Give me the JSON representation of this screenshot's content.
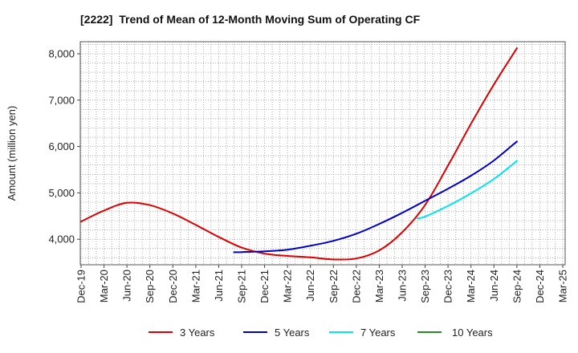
{
  "chart_data": {
    "type": "line",
    "title": "[2222]  Trend of Mean of 12-Month Moving Sum of Operating CF",
    "ylabel": "Amount (million yen)",
    "xlim": [
      2019.917,
      2025.167
    ],
    "ylim": [
      3450,
      8260
    ],
    "grid": true,
    "legend_position": "bottom",
    "x_ticks": [
      {
        "label": "Dec-19",
        "x": 2019.917
      },
      {
        "label": "Mar-20",
        "x": 2020.167
      },
      {
        "label": "Jun-20",
        "x": 2020.417
      },
      {
        "label": "Sep-20",
        "x": 2020.667
      },
      {
        "label": "Dec-20",
        "x": 2020.917
      },
      {
        "label": "Mar-21",
        "x": 2021.167
      },
      {
        "label": "Jun-21",
        "x": 2021.417
      },
      {
        "label": "Sep-21",
        "x": 2021.667
      },
      {
        "label": "Dec-21",
        "x": 2021.917
      },
      {
        "label": "Mar-22",
        "x": 2022.167
      },
      {
        "label": "Jun-22",
        "x": 2022.417
      },
      {
        "label": "Sep-22",
        "x": 2022.667
      },
      {
        "label": "Dec-22",
        "x": 2022.917
      },
      {
        "label": "Mar-23",
        "x": 2023.167
      },
      {
        "label": "Jun-23",
        "x": 2023.417
      },
      {
        "label": "Sep-23",
        "x": 2023.667
      },
      {
        "label": "Dec-23",
        "x": 2023.917
      },
      {
        "label": "Mar-24",
        "x": 2024.167
      },
      {
        "label": "Jun-24",
        "x": 2024.417
      },
      {
        "label": "Sep-24",
        "x": 2024.667
      },
      {
        "label": "Dec-24",
        "x": 2024.917
      },
      {
        "label": "Mar-25",
        "x": 2025.167
      }
    ],
    "y_ticks": [
      {
        "label": "4,000",
        "y": 4000
      },
      {
        "label": "5,000",
        "y": 5000
      },
      {
        "label": "6,000",
        "y": 6000
      },
      {
        "label": "7,000",
        "y": 7000
      },
      {
        "label": "8,000",
        "y": 8000
      }
    ],
    "series": [
      {
        "name": "3 Years",
        "color": "#dd0000",
        "points": [
          [
            2019.917,
            4380
          ],
          [
            2020.167,
            4620
          ],
          [
            2020.417,
            4785
          ],
          [
            2020.667,
            4735
          ],
          [
            2020.917,
            4555
          ],
          [
            2021.167,
            4310
          ],
          [
            2021.417,
            4050
          ],
          [
            2021.667,
            3820
          ],
          [
            2021.917,
            3690
          ],
          [
            2022.167,
            3640
          ],
          [
            2022.417,
            3610
          ],
          [
            2022.667,
            3565
          ],
          [
            2022.917,
            3585
          ],
          [
            2023.167,
            3760
          ],
          [
            2023.417,
            4150
          ],
          [
            2023.667,
            4740
          ],
          [
            2023.917,
            5590
          ],
          [
            2024.167,
            6490
          ],
          [
            2024.417,
            7340
          ],
          [
            2024.667,
            8120
          ]
        ]
      },
      {
        "name": "5 Years",
        "color": "#0000cc",
        "points": [
          [
            2021.583,
            3720
          ],
          [
            2021.667,
            3723
          ],
          [
            2021.917,
            3740
          ],
          [
            2022.167,
            3775
          ],
          [
            2022.417,
            3860
          ],
          [
            2022.667,
            3965
          ],
          [
            2022.917,
            4120
          ],
          [
            2023.167,
            4330
          ],
          [
            2023.417,
            4570
          ],
          [
            2023.667,
            4830
          ],
          [
            2023.917,
            5090
          ],
          [
            2024.167,
            5370
          ],
          [
            2024.417,
            5700
          ],
          [
            2024.667,
            6110
          ]
        ]
      },
      {
        "name": "7 Years",
        "color": "#00e5ee",
        "points": [
          [
            2023.583,
            4450
          ],
          [
            2023.667,
            4490
          ],
          [
            2023.917,
            4720
          ],
          [
            2024.167,
            4990
          ],
          [
            2024.417,
            5300
          ],
          [
            2024.667,
            5690
          ]
        ]
      },
      {
        "name": "10 Years",
        "color": "#228b22",
        "points": []
      }
    ]
  }
}
